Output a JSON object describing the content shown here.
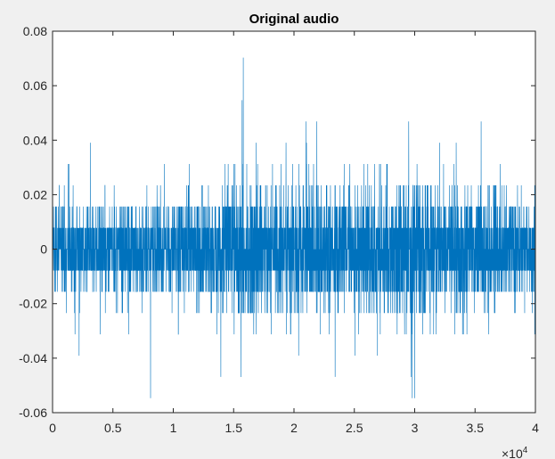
{
  "chart_data": {
    "type": "line",
    "title": "Original audio",
    "xlabel": "",
    "ylabel": "",
    "xlim": [
      0,
      40000
    ],
    "ylim": [
      -0.06,
      0.08
    ],
    "x_exponent_label": "×10",
    "x_exponent_power": "4",
    "x_ticks": [
      0,
      5000,
      10000,
      15000,
      20000,
      25000,
      30000,
      35000,
      40000
    ],
    "x_tick_labels": [
      "0",
      "0.5",
      "1",
      "1.5",
      "2",
      "2.5",
      "3",
      "3.5",
      "4"
    ],
    "y_ticks": [
      -0.06,
      -0.04,
      -0.02,
      0,
      0.02,
      0.04,
      0.06,
      0.08
    ],
    "y_tick_labels": [
      "-0.06",
      "-0.04",
      "-0.02",
      "0",
      "0.02",
      "0.04",
      "0.06",
      "0.08"
    ],
    "grid": false,
    "line_color": "#0072bd",
    "background_color": "#f0f0f0",
    "axes_color": "#ffffff",
    "series": [
      {
        "num_samples": 40000,
        "max": 0.0703,
        "min": -0.0547,
        "peaks": [
          {
            "x": 15800,
            "y": 0.0703
          },
          {
            "x": 15700,
            "y": 0.0547
          },
          {
            "x": 29800,
            "y": -0.0547
          },
          {
            "x": 30000,
            "y": -0.0547
          },
          {
            "x": 29700,
            "y": -0.0469
          },
          {
            "x": 15600,
            "y": -0.0469
          },
          {
            "x": 2200,
            "y": -0.0391
          },
          {
            "x": 21000,
            "y": 0.0469
          },
          {
            "x": 29500,
            "y": 0.0469
          },
          {
            "x": 35500,
            "y": 0.0469
          }
        ]
      }
    ]
  }
}
